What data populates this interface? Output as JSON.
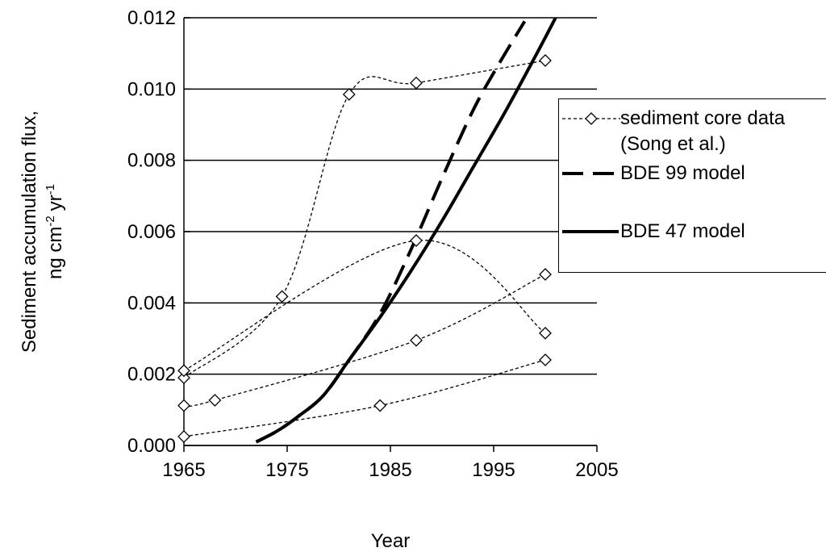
{
  "chart_data": {
    "type": "line",
    "xlabel": "Year",
    "ylabel": {
      "line1": "Sediment accumulation flux,",
      "line2": [
        "ng cm",
        "-2",
        "yr",
        "-1"
      ]
    },
    "xlim": [
      1965,
      2005
    ],
    "xticks": [
      1965,
      1975,
      1985,
      1995,
      2005
    ],
    "ylim": [
      0,
      0.012
    ],
    "yticks": [
      {
        "value": 0,
        "label": "0.000"
      },
      {
        "value": 0.002,
        "label": "0.002"
      },
      {
        "value": 0.004,
        "label": "0.004"
      },
      {
        "value": 0.006,
        "label": "0.006"
      },
      {
        "value": 0.008,
        "label": "0.008"
      },
      {
        "value": 0.01,
        "label": "0.010"
      },
      {
        "value": 0.012,
        "label": "0.012"
      }
    ],
    "grid": true,
    "core_data": {
      "name": "sediment core data (Song et al.)",
      "color": "#000000",
      "cores": [
        {
          "x": [
            1965,
            1974.5,
            1981,
            1987.5,
            2000
          ],
          "values": [
            0.0019,
            0.00418,
            0.00985,
            0.01017,
            0.0108
          ]
        },
        {
          "x": [
            1965,
            1987.5,
            2000
          ],
          "values": [
            0.0021,
            0.00575,
            0.00315
          ]
        },
        {
          "x": [
            1965,
            1968,
            1987.5,
            2000
          ],
          "values": [
            0.00112,
            0.00127,
            0.00295,
            0.0048
          ]
        },
        {
          "x": [
            1965,
            1984,
            2000
          ],
          "values": [
            0.00025,
            0.00112,
            0.0024
          ]
        }
      ]
    },
    "series": [
      {
        "name": "BDE 99 model",
        "color": "#000000",
        "dash": true,
        "x": [
          1972,
          1974,
          1976,
          1978.5,
          1981,
          1984,
          1987,
          1990,
          1993,
          1995.5,
          1998
        ],
        "values": [
          0.0001,
          0.0004,
          0.0008,
          0.0014,
          0.0024,
          0.0037,
          0.0055,
          0.0075,
          0.0094,
          0.0107,
          0.0119
        ]
      },
      {
        "name": "BDE 47 model",
        "color": "#000000",
        "dash": false,
        "x": [
          1972,
          1974,
          1976,
          1978.5,
          1981,
          1984,
          1987,
          1990,
          1993,
          1996,
          1999,
          2001
        ],
        "values": [
          0.0001,
          0.0004,
          0.0008,
          0.0014,
          0.0024,
          0.0036,
          0.0049,
          0.0063,
          0.0078,
          0.0093,
          0.0109,
          0.012
        ]
      }
    ]
  }
}
